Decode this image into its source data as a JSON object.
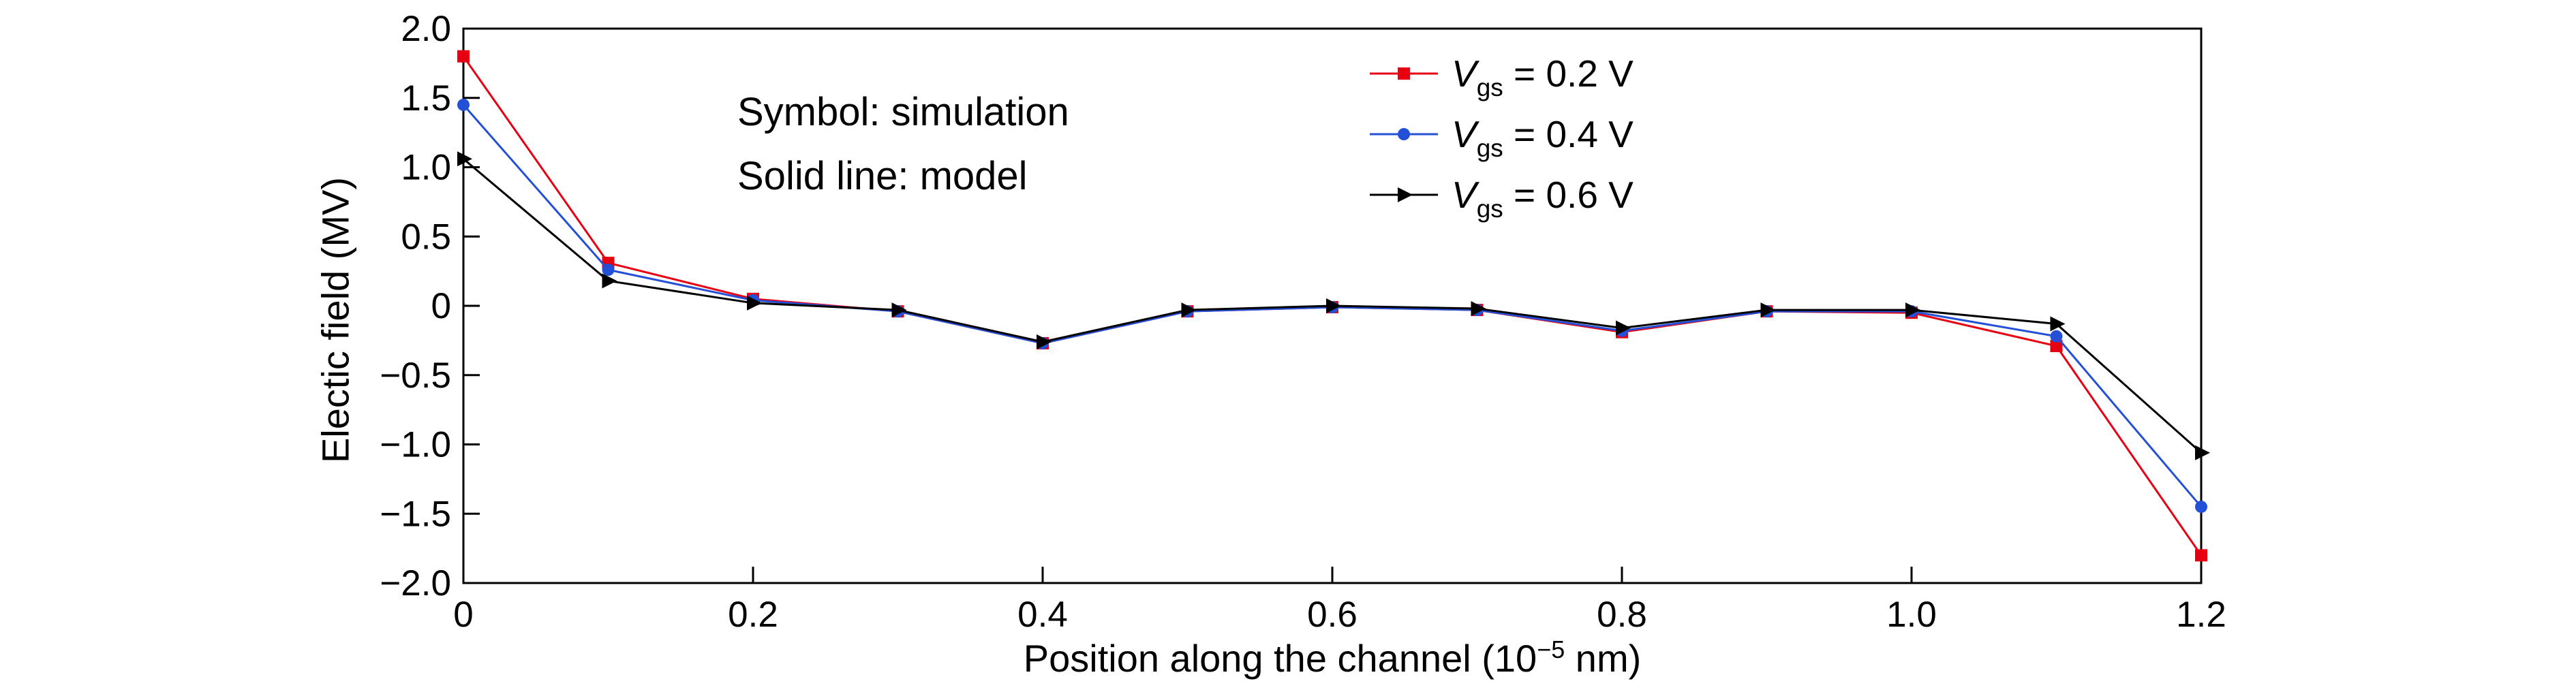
{
  "figure": {
    "background": "#ffffff",
    "ylabel": "Electic field (MV)",
    "xlabel_prefix": "Position along the channel (10",
    "xlabel_sup": "−5",
    "xlabel_suffix": " nm)",
    "annotation_line1": "Symbol: simulation",
    "annotation_line2": "Solid line: model"
  },
  "chart_data": {
    "type": "line",
    "title": "",
    "xlabel": "Position along the channel (10^−5 nm)",
    "ylabel": "Electic field (MV)",
    "xlim": [
      0,
      1.2
    ],
    "ylim": [
      -2.0,
      2.0
    ],
    "grid": false,
    "legend_position": "top-center",
    "x": [
      0,
      0.1,
      0.2,
      0.3,
      0.4,
      0.5,
      0.6,
      0.7,
      0.8,
      0.9,
      1.0,
      1.1,
      1.2
    ],
    "xticks": {
      "values": [
        0,
        0.2,
        0.4,
        0.6,
        0.8,
        1.0,
        1.2
      ],
      "labels": [
        "0",
        "0.2",
        "0.4",
        "0.6",
        "0.8",
        "1.0",
        "1.2"
      ]
    },
    "yticks": {
      "values": [
        -2.0,
        -1.5,
        -1.0,
        -0.5,
        0,
        0.5,
        1.0,
        1.5,
        2.0
      ],
      "labels": [
        "−2.0",
        "−1.5",
        "−1.0",
        "−0.5",
        "0",
        "0.5",
        "1.0",
        "1.5",
        "2.0"
      ]
    },
    "series": [
      {
        "name": "Vgs = 0.2 V",
        "legend": {
          "var": "V",
          "sub": "gs",
          "rest": " = 0.2 V"
        },
        "color": "#e60012",
        "marker": "square",
        "values": [
          1.8,
          0.31,
          0.05,
          -0.04,
          -0.27,
          -0.04,
          -0.01,
          -0.03,
          -0.19,
          -0.04,
          -0.05,
          -0.29,
          -1.8
        ]
      },
      {
        "name": "Vgs = 0.4 V",
        "legend": {
          "var": "V",
          "sub": "gs",
          "rest": " = 0.4 V"
        },
        "color": "#2450d8",
        "marker": "circle",
        "values": [
          1.45,
          0.26,
          0.04,
          -0.04,
          -0.27,
          -0.04,
          -0.01,
          -0.03,
          -0.18,
          -0.04,
          -0.04,
          -0.22,
          -1.45
        ]
      },
      {
        "name": "Vgs = 0.6 V",
        "legend": {
          "var": "V",
          "sub": "gs",
          "rest": " = 0.6 V"
        },
        "color": "#000000",
        "marker": "triangle-right",
        "values": [
          1.06,
          0.18,
          0.02,
          -0.03,
          -0.26,
          -0.03,
          0.0,
          -0.02,
          -0.16,
          -0.03,
          -0.03,
          -0.13,
          -1.06
        ]
      }
    ]
  }
}
